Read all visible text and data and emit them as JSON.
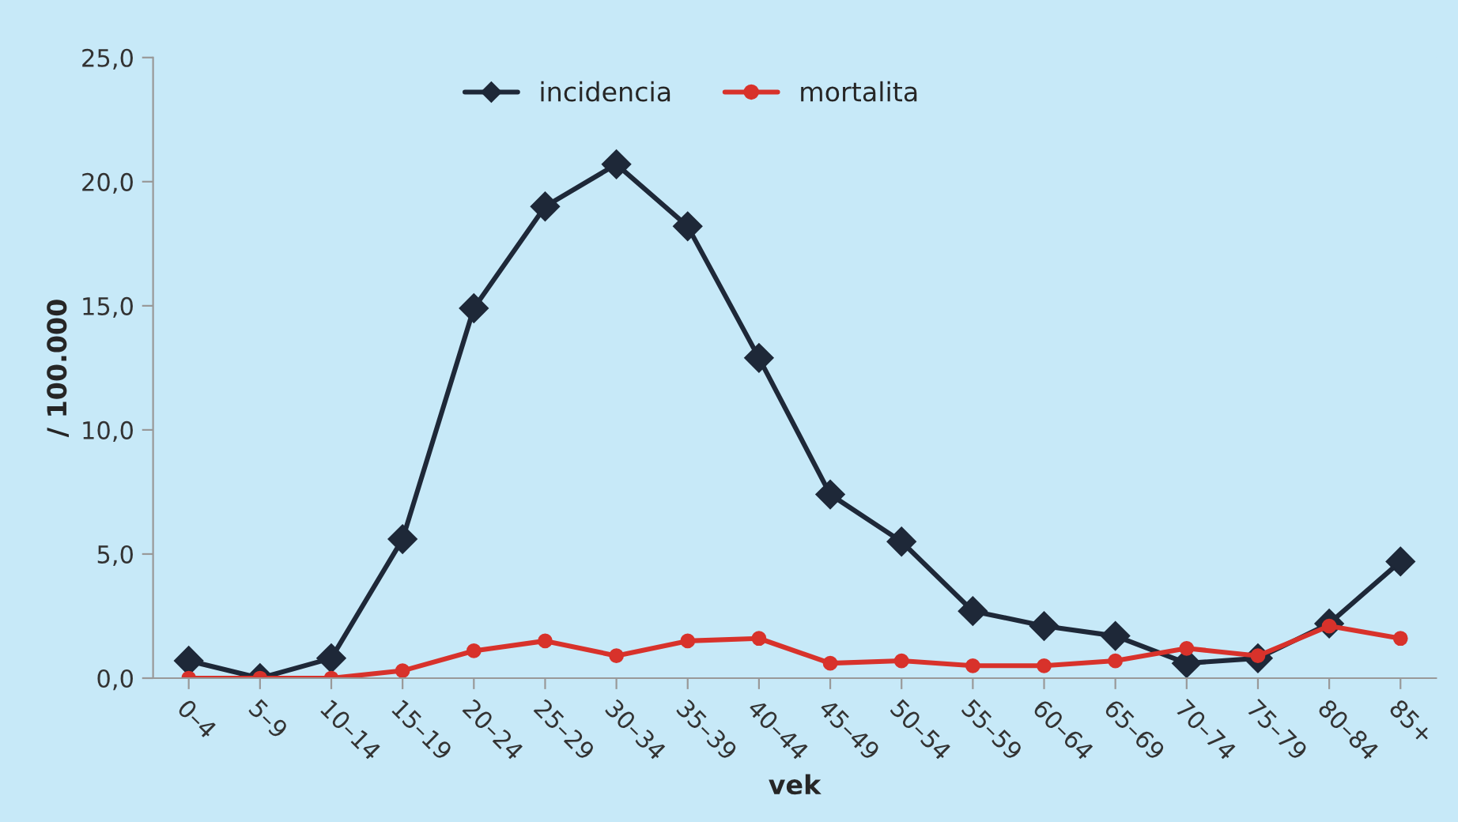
{
  "chart_data": {
    "type": "line",
    "xlabel": "vek",
    "ylabel": "/ 100.000",
    "categories": [
      "0–4",
      "5–9",
      "10–14",
      "15–19",
      "20–24",
      "25–29",
      "30–34",
      "35–39",
      "40–44",
      "45–49",
      "50–54",
      "55–59",
      "60–64",
      "65–69",
      "70–74",
      "75–79",
      "80–84",
      "85+"
    ],
    "series": [
      {
        "name": "incidencia",
        "color": "#1e2838",
        "marker": "diamond",
        "values": [
          0.7,
          0.0,
          0.8,
          5.6,
          14.9,
          19.0,
          20.7,
          18.2,
          12.9,
          7.4,
          5.5,
          2.7,
          2.1,
          1.7,
          0.6,
          0.8,
          2.2,
          4.7
        ]
      },
      {
        "name": "mortalita",
        "color": "#d8322b",
        "marker": "circle",
        "values": [
          0.0,
          0.0,
          0.0,
          0.3,
          1.1,
          1.5,
          0.9,
          1.5,
          1.6,
          0.6,
          0.7,
          0.5,
          0.5,
          0.7,
          1.2,
          0.9,
          2.1,
          1.6
        ]
      }
    ],
    "ylim": [
      0,
      25
    ],
    "yticks": [
      {
        "value": 0,
        "label": "0,0"
      },
      {
        "value": 5,
        "label": "5,0"
      },
      {
        "value": 10,
        "label": "10,0"
      },
      {
        "value": 15,
        "label": "15,0"
      },
      {
        "value": 20,
        "label": "20,0"
      },
      {
        "value": 25,
        "label": "25,0"
      }
    ],
    "grid": false,
    "legend": "top",
    "line_style": "solid"
  }
}
